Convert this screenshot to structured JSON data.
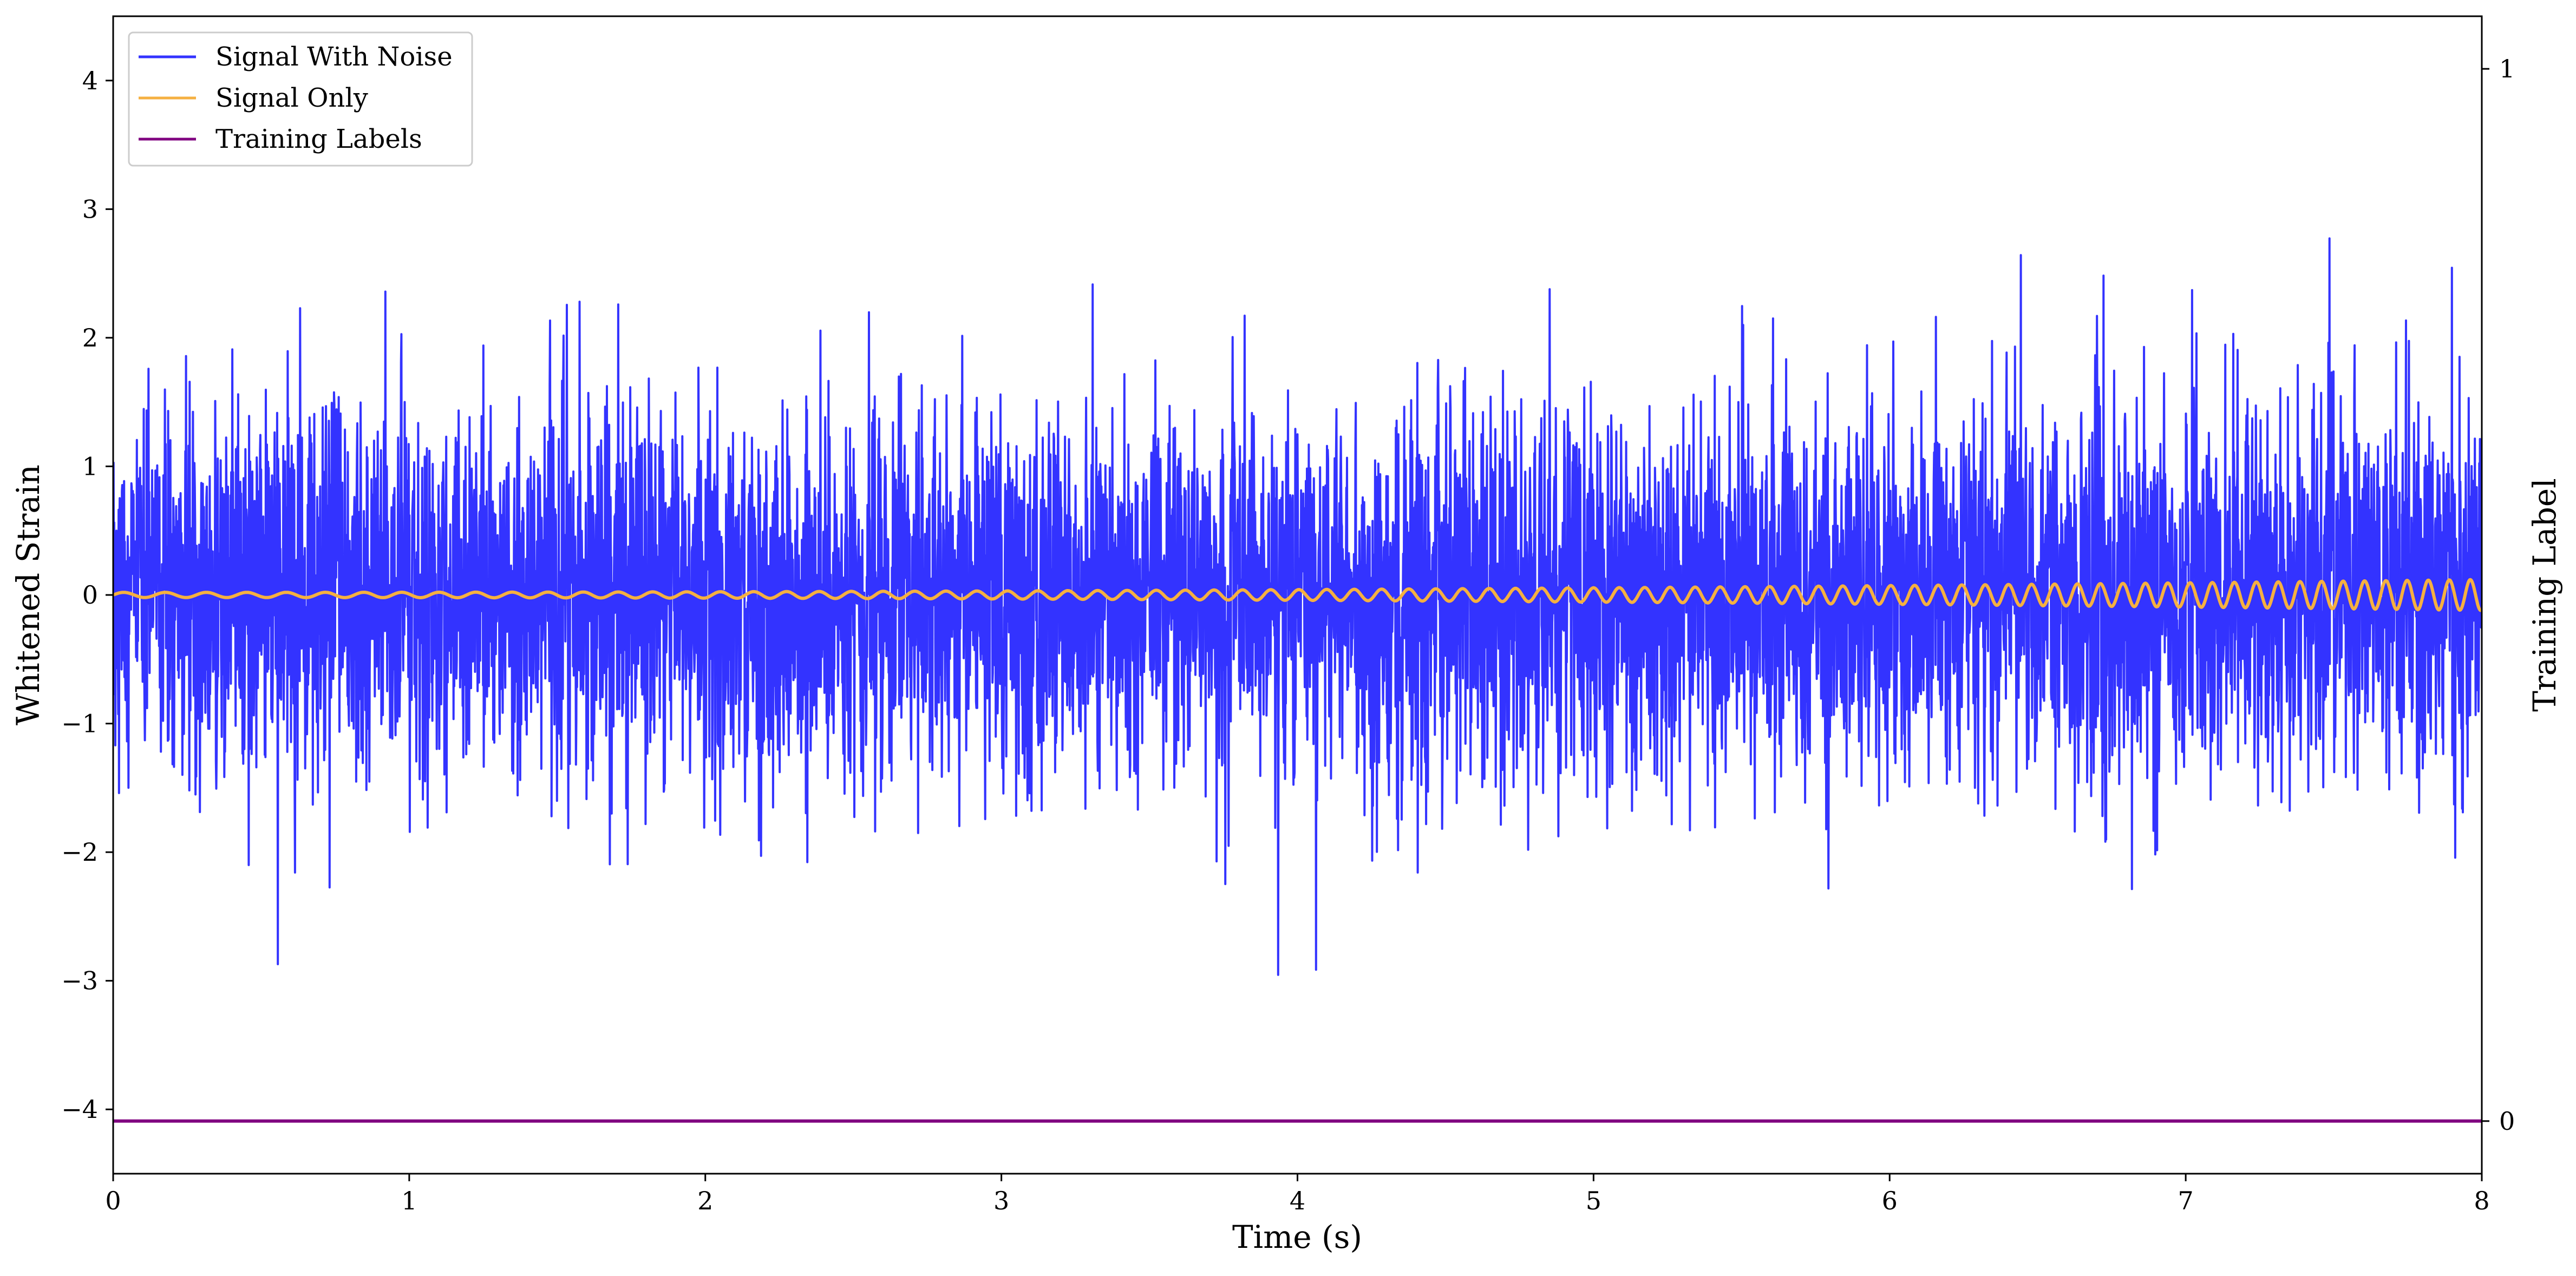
{
  "chart_data": {
    "type": "line",
    "title": "",
    "xlabel": "Time (s)",
    "ylabel": "Whitened Strain",
    "y2label": "Training Label",
    "xlim": [
      0,
      8
    ],
    "ylim": [
      -4.5,
      4.5
    ],
    "y2lim": [
      -0.05,
      1.05
    ],
    "x_ticks": [
      0,
      1,
      2,
      3,
      4,
      5,
      6,
      7,
      8
    ],
    "x_tick_labels": [
      "0",
      "1",
      "2",
      "3",
      "4",
      "5",
      "6",
      "7",
      "8"
    ],
    "y_ticks": [
      -4,
      -3,
      -2,
      -1,
      0,
      1,
      2,
      3,
      4
    ],
    "y_tick_labels": [
      "−4",
      "−3",
      "−2",
      "−1",
      "0",
      "1",
      "2",
      "3",
      "4"
    ],
    "y2_ticks": [
      0,
      1
    ],
    "y2_tick_labels": [
      "0",
      "1"
    ],
    "grid": false,
    "legend_position": "top-left",
    "series": [
      {
        "name": "Signal With Noise",
        "color": "#3333ff",
        "axis": "left",
        "description": "Gaussian-like noise, spread roughly -3.2 to 3.3 with most values between -1.5 and 1.5",
        "approx_range": [
          -3.2,
          3.3
        ]
      },
      {
        "name": "Signal Only",
        "color": "#f5b041",
        "axis": "left",
        "description": "Chirp oscillation around 0 with amplitude growing from about 0.02 to 0.12 and rising frequency",
        "approx_amplitude_start": 0.02,
        "approx_amplitude_end": 0.12
      },
      {
        "name": "Training Labels",
        "color": "#800080",
        "axis": "right",
        "x": [
          0,
          8
        ],
        "values": [
          0,
          0
        ]
      }
    ]
  }
}
